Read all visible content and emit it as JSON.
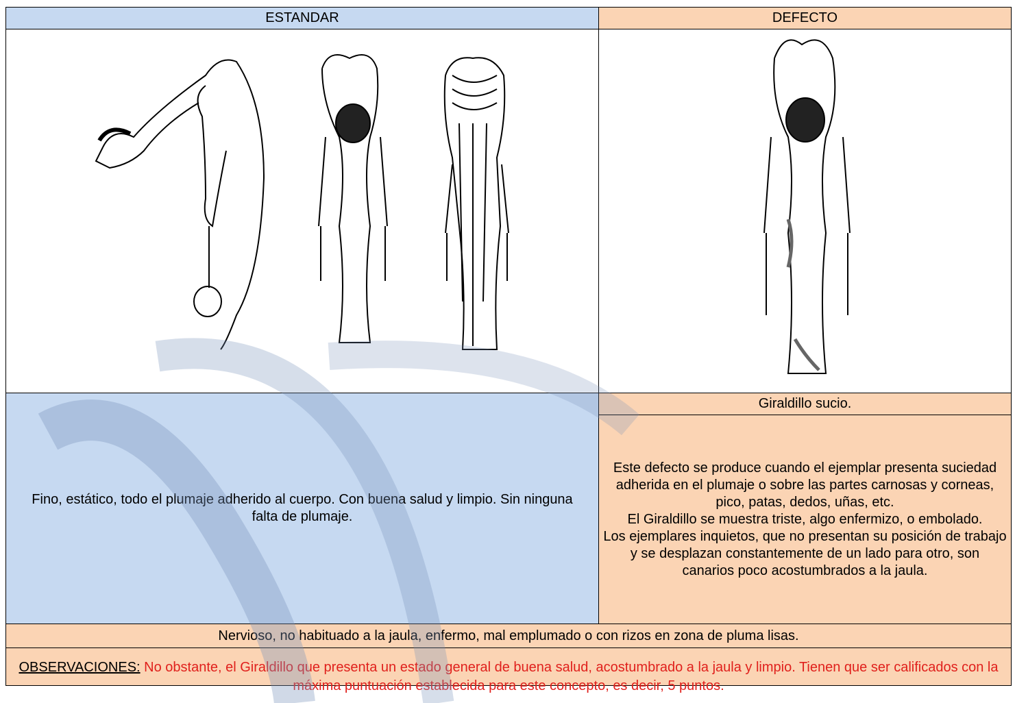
{
  "header": {
    "standard": "ESTANDAR",
    "defect": "DEFECTO"
  },
  "defect_name": "Giraldillo sucio.",
  "standard_description": "Fino, estático, todo el plumaje adherido al cuerpo. Con buena salud y limpio. Sin ninguna falta de plumaje.",
  "defect_description": [
    "Este defecto se produce cuando el ejemplar presenta suciedad adherida en el plumaje o sobre las partes carnosas y corneas, pico, patas, dedos, uñas, etc.",
    "El Giraldillo se muestra triste, algo enfermizo, o embolado.",
    "Los ejemplares inquietos, que no presentan su posición de trabajo y se desplazan constantemente de un lado para otro, son canarios poco acostumbrados a la jaula."
  ],
  "faults": "Nervioso, no habituado a la jaula, enfermo, mal emplumado o con rizos en zona de pluma lisas.",
  "observations": {
    "label": "OBSERVACIONES:",
    "text": "No obstante, el Giraldillo que presenta un estado general de buena salud, acostumbrado a la jaula y limpio. Tienen que ser calificados con la máxima puntuación establecida para este concepto, es decir, 5 puntos."
  }
}
